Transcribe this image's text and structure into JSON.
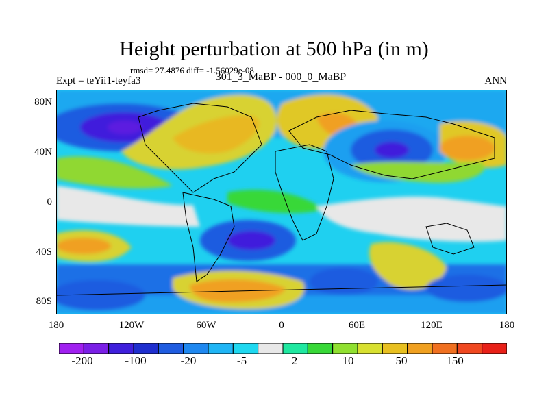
{
  "title": "Height perturbation at 500 hPa (in m)",
  "stats": "rmsd= 27.4876 diff= -1.56029e-08",
  "left_label": "Expt = teYii1-teyfa3",
  "center_label": "301_3_MaBP - 000_0_MaBP",
  "right_label": "ANN",
  "map": {
    "lat_ticks": [
      "80N",
      "40N",
      "0",
      "40S",
      "80S"
    ],
    "lon_ticks": [
      "180",
      "120W",
      "60W",
      "0",
      "60E",
      "120E",
      "180"
    ]
  },
  "colorbar": {
    "colors": [
      "#a020f0",
      "#7a1fe6",
      "#3f1fdc",
      "#1f2fcf",
      "#1f5ce0",
      "#1f88f0",
      "#1fb5f5",
      "#1fd8f0",
      "#e8e8e8",
      "#1fe8a0",
      "#38d838",
      "#90e030",
      "#d8e030",
      "#e8c020",
      "#f0a020",
      "#f07020",
      "#f04820",
      "#e82018"
    ],
    "labels": [
      "-200",
      "-100",
      "-20",
      "-5",
      "2",
      "10",
      "50",
      "150"
    ]
  }
}
